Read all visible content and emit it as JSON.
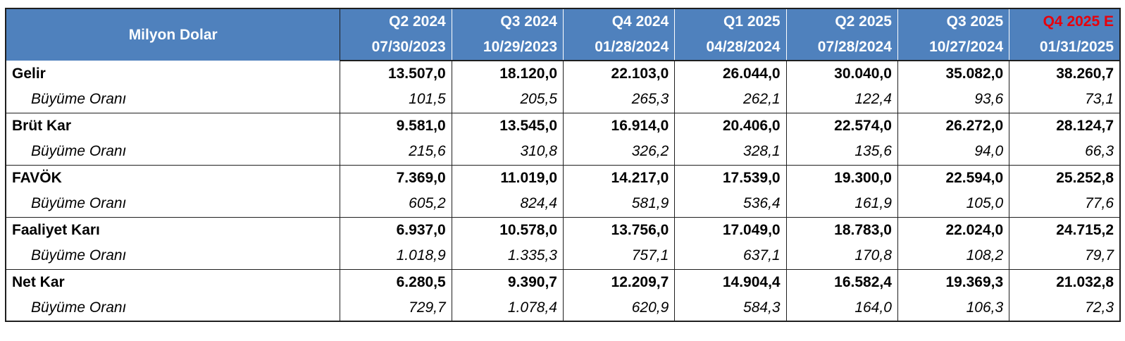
{
  "header": {
    "label": "Milyon Dolar",
    "columns": [
      {
        "quarter": "Q2 2024",
        "date": "07/30/2023"
      },
      {
        "quarter": "Q3 2024",
        "date": "10/29/2023"
      },
      {
        "quarter": "Q4 2024",
        "date": "01/28/2024"
      },
      {
        "quarter": "Q1 2025",
        "date": "04/28/2024"
      },
      {
        "quarter": "Q2 2025",
        "date": "07/28/2024"
      },
      {
        "quarter": "Q3 2025",
        "date": "10/27/2024"
      },
      {
        "quarter": "Q4 2025 E",
        "date": "01/31/2025"
      }
    ],
    "estimate_color": "#e8000b",
    "header_bg": "#4f81bd"
  },
  "rows": [
    {
      "metric": "Gelir",
      "values": [
        "13.507,0",
        "18.120,0",
        "22.103,0",
        "26.044,0",
        "30.040,0",
        "35.082,0",
        "38.260,7"
      ],
      "growth_label": "Büyüme Oranı",
      "growth": [
        "101,5",
        "205,5",
        "265,3",
        "262,1",
        "122,4",
        "93,6",
        "73,1"
      ]
    },
    {
      "metric": "Brüt Kar",
      "values": [
        "9.581,0",
        "13.545,0",
        "16.914,0",
        "20.406,0",
        "22.574,0",
        "26.272,0",
        "28.124,7"
      ],
      "growth_label": "Büyüme Oranı",
      "growth": [
        "215,6",
        "310,8",
        "326,2",
        "328,1",
        "135,6",
        "94,0",
        "66,3"
      ]
    },
    {
      "metric": "FAVÖK",
      "values": [
        "7.369,0",
        "11.019,0",
        "14.217,0",
        "17.539,0",
        "19.300,0",
        "22.594,0",
        "25.252,8"
      ],
      "growth_label": "Büyüme Oranı",
      "growth": [
        "605,2",
        "824,4",
        "581,9",
        "536,4",
        "161,9",
        "105,0",
        "77,6"
      ]
    },
    {
      "metric": "Faaliyet Karı",
      "values": [
        "6.937,0",
        "10.578,0",
        "13.756,0",
        "17.049,0",
        "18.783,0",
        "22.024,0",
        "24.715,2"
      ],
      "growth_label": "Büyüme Oranı",
      "growth": [
        "1.018,9",
        "1.335,3",
        "757,1",
        "637,1",
        "170,8",
        "108,2",
        "79,7"
      ]
    },
    {
      "metric": "Net Kar",
      "values": [
        "6.280,5",
        "9.390,7",
        "12.209,7",
        "14.904,4",
        "16.582,4",
        "19.369,3",
        "21.032,8"
      ],
      "growth_label": "Büyüme Oranı",
      "growth": [
        "729,7",
        "1.078,4",
        "620,9",
        "584,3",
        "164,0",
        "106,3",
        "72,3"
      ]
    }
  ]
}
